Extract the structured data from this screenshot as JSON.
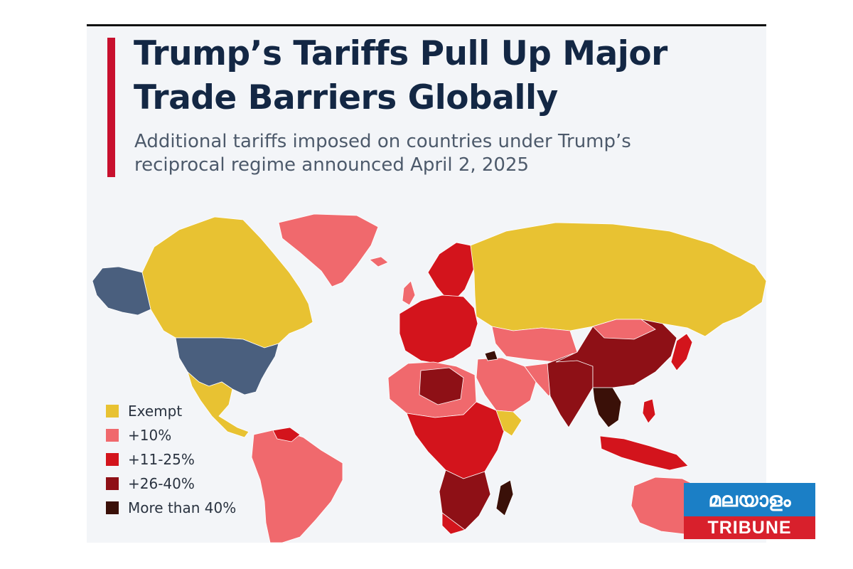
{
  "header": {
    "title": "Trump’s Tariffs Pull Up Major Trade Barriers Globally",
    "subtitle": "Additional tariffs imposed on countries under Trump’s reciprocal regime announced April 2, 2025"
  },
  "legend": {
    "items": [
      {
        "label": "Exempt",
        "color": "#e8c232"
      },
      {
        "label": "+10%",
        "color": "#f0696d"
      },
      {
        "label": "+11-25%",
        "color": "#d3141c"
      },
      {
        "label": "+26-40%",
        "color": "#8e1016"
      },
      {
        "label": "More than 40%",
        "color": "#3a1008"
      }
    ]
  },
  "map_regions": [
    {
      "region": "Alaska",
      "category": "United States"
    },
    {
      "region": "United States",
      "category": "United States"
    },
    {
      "region": "Canada",
      "category": "Exempt"
    },
    {
      "region": "Mexico",
      "category": "Exempt"
    },
    {
      "region": "Greenland",
      "category": "+10%"
    },
    {
      "region": "Russia",
      "category": "Exempt"
    },
    {
      "region": "South America",
      "category": "+10%"
    },
    {
      "region": "Europe",
      "category": "+11-25%"
    },
    {
      "region": "China",
      "category": "+26-40%"
    },
    {
      "region": "Southeast Asia",
      "category": "More than 40%"
    },
    {
      "region": "Australia",
      "category": "+10%"
    },
    {
      "region": "Madagascar",
      "category": "More than 40%"
    }
  ],
  "colors": {
    "accent": "#c8102e",
    "title_text": "#132744",
    "subtitle_text": "#4d5a6b",
    "united_states": "#4a5f7e",
    "background": "#f3f5f8"
  },
  "badge": {
    "top_text": "മലയാളം",
    "bottom_text": "TRIBUNE",
    "top_color": "#1b7fc6",
    "bottom_color": "#d8202c"
  }
}
